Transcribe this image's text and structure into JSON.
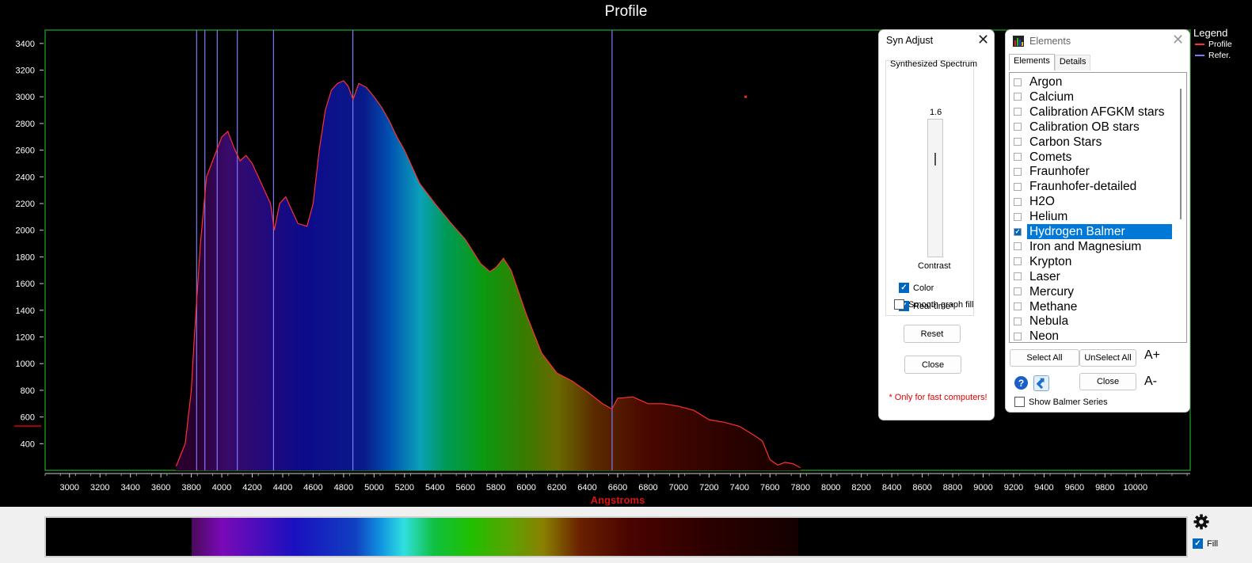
{
  "plot": {
    "title": "Profile"
  },
  "legend": {
    "title": "Legend",
    "items": [
      {
        "label": "Profile",
        "color": "#ff3030"
      },
      {
        "label": "Refer.",
        "color": "#7a7aff"
      }
    ]
  },
  "chart_data": {
    "type": "area",
    "title": "Profile",
    "xlabel": "Angstroms",
    "ylabel": "",
    "xlim": [
      2840,
      10360
    ],
    "ylim": [
      200,
      3500
    ],
    "grid": false,
    "legend_position": "top-right",
    "x_ticks": [
      3000,
      3200,
      3400,
      3600,
      3800,
      4000,
      4200,
      4400,
      4600,
      4800,
      5000,
      5200,
      5400,
      5600,
      5800,
      6000,
      6200,
      6400,
      6600,
      6800,
      7000,
      7200,
      7400,
      7600,
      7800,
      8000,
      8200,
      8400,
      8600,
      8800,
      9000,
      9200,
      9400,
      9600,
      9800,
      10000
    ],
    "y_ticks": [
      400,
      600,
      800,
      1000,
      1200,
      1400,
      1600,
      1800,
      2000,
      2200,
      2400,
      2600,
      2800,
      3000,
      3200,
      3400
    ],
    "series": [
      {
        "name": "Profile",
        "color": "#ff3030",
        "x": [
          3700,
          3760,
          3800,
          3820,
          3860,
          3900,
          3950,
          4000,
          4040,
          4080,
          4120,
          4160,
          4200,
          4240,
          4280,
          4320,
          4345,
          4380,
          4420,
          4460,
          4500,
          4560,
          4600,
          4640,
          4680,
          4720,
          4760,
          4800,
          4830,
          4862,
          4900,
          4950,
          5000,
          5050,
          5100,
          5150,
          5200,
          5300,
          5400,
          5500,
          5600,
          5700,
          5760,
          5800,
          5850,
          5900,
          6000,
          6100,
          6200,
          6300,
          6400,
          6500,
          6562,
          6600,
          6700,
          6800,
          6900,
          7000,
          7100,
          7200,
          7300,
          7400,
          7500,
          7550,
          7600,
          7650,
          7700,
          7750,
          7800
        ],
        "y": [
          230,
          400,
          800,
          1200,
          1900,
          2400,
          2550,
          2700,
          2740,
          2620,
          2520,
          2560,
          2500,
          2400,
          2300,
          2200,
          2000,
          2200,
          2250,
          2150,
          2050,
          2030,
          2200,
          2600,
          2900,
          3050,
          3100,
          3120,
          3080,
          2980,
          3100,
          3070,
          3000,
          2920,
          2820,
          2700,
          2600,
          2350,
          2200,
          2060,
          1930,
          1750,
          1690,
          1720,
          1790,
          1700,
          1370,
          1080,
          930,
          870,
          790,
          700,
          660,
          740,
          750,
          700,
          700,
          680,
          650,
          580,
          560,
          530,
          460,
          420,
          280,
          240,
          260,
          250,
          220
        ]
      },
      {
        "name": "Refer.",
        "color": "#7a7aff",
        "type": "vlines",
        "x": [
          3835,
          3889,
          3970,
          4102,
          4340,
          4861,
          6563
        ]
      }
    ],
    "marker_point": {
      "x": 7440,
      "y": 3000
    }
  },
  "syn_adjust": {
    "title": "Syn Adjust",
    "group_label": "Synthesized Spectrum",
    "slider_value": "1.6",
    "slider_level": 0.3,
    "contrast_label": "Contrast",
    "color_label": "Color",
    "color_checked": true,
    "realtime_label": "Real-time*",
    "realtime_checked": true,
    "smooth_label": "Smooth graph fill",
    "smooth_checked": false,
    "reset_label": "Reset",
    "close_label": "Close",
    "note": "* Only for fast computers!"
  },
  "elements": {
    "title": "Elements",
    "tabs": [
      "Elements",
      "Details"
    ],
    "active_tab": 0,
    "items": [
      {
        "label": "Argon",
        "checked": false
      },
      {
        "label": "Calcium",
        "checked": false
      },
      {
        "label": "Calibration AFGKM stars",
        "checked": false
      },
      {
        "label": "Calibration OB stars",
        "checked": false
      },
      {
        "label": "Carbon Stars",
        "checked": false
      },
      {
        "label": "Comets",
        "checked": false
      },
      {
        "label": "Fraunhofer",
        "checked": false
      },
      {
        "label": "Fraunhofer-detailed",
        "checked": false
      },
      {
        "label": "H2O",
        "checked": false
      },
      {
        "label": "Helium",
        "checked": false
      },
      {
        "label": "Hydrogen Balmer",
        "checked": true,
        "selected": true
      },
      {
        "label": "Iron and Magnesium",
        "checked": false
      },
      {
        "label": "Krypton",
        "checked": false
      },
      {
        "label": "Laser",
        "checked": false
      },
      {
        "label": "Mercury",
        "checked": false
      },
      {
        "label": "Methane",
        "checked": false
      },
      {
        "label": "Nebula",
        "checked": false
      },
      {
        "label": "Neon",
        "checked": false
      }
    ],
    "select_all_label": "Select All",
    "unselect_all_label": "UnSelect All",
    "font_up_label": "A+",
    "font_down_label": "A-",
    "close_label": "Close",
    "show_balmer_label": "Show Balmer Series",
    "show_balmer_checked": false
  },
  "strip": {
    "fill_label": "Fill",
    "fill_checked": true,
    "range_start": 3800,
    "range_end": 7800
  }
}
